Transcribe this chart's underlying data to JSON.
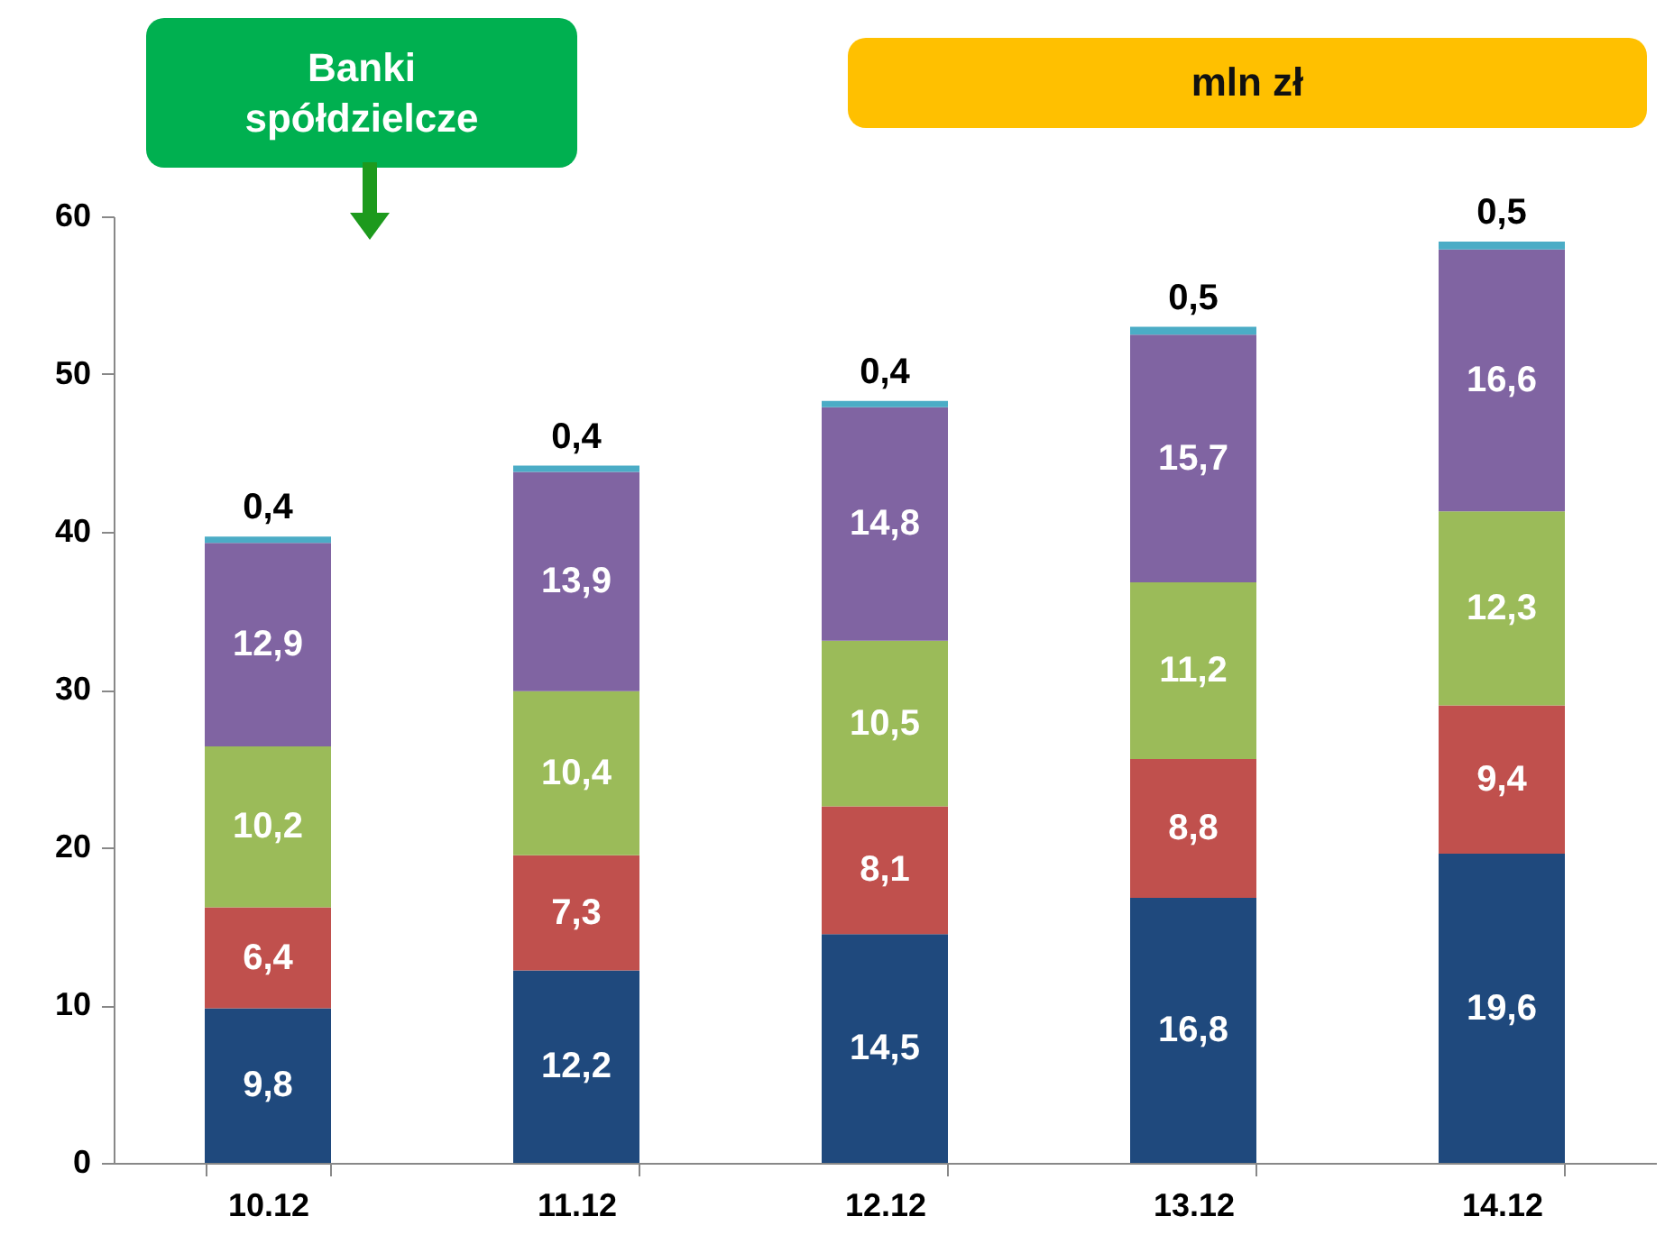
{
  "chart_data": {
    "type": "bar",
    "stacked": true,
    "categories": [
      "10.12",
      "11.12",
      "12.12",
      "13.12",
      "14.12"
    ],
    "series": [
      {
        "color": "#1f497d",
        "values": [
          9.8,
          12.2,
          14.5,
          16.8,
          19.6
        ],
        "value_labels": [
          "9,8",
          "12,2",
          "14,5",
          "16,8",
          "19,6"
        ]
      },
      {
        "color": "#c0504d",
        "values": [
          6.4,
          7.3,
          8.1,
          8.8,
          9.4
        ],
        "value_labels": [
          "6,4",
          "7,3",
          "8,1",
          "8,8",
          "9,4"
        ]
      },
      {
        "color": "#9bbb59",
        "values": [
          10.2,
          10.4,
          10.5,
          11.2,
          12.3
        ],
        "value_labels": [
          "10,2",
          "10,4",
          "10,5",
          "11,2",
          "12,3"
        ]
      },
      {
        "color": "#8064a2",
        "values": [
          12.9,
          13.9,
          14.8,
          15.7,
          16.6
        ],
        "value_labels": [
          "12,9",
          "13,9",
          "14,8",
          "15,7",
          "16,6"
        ]
      },
      {
        "color": "#4bacc6",
        "values": [
          0.4,
          0.4,
          0.4,
          0.5,
          0.5
        ],
        "value_labels": [
          "0,4",
          "0,4",
          "0,4",
          "0,5",
          "0,5"
        ]
      }
    ],
    "ylim": [
      0,
      60
    ],
    "yticks": [
      0,
      10,
      20,
      30,
      40,
      50,
      60
    ],
    "grid": false,
    "annotations": [
      "Banki spółdzielcze",
      "mln zł"
    ]
  }
}
